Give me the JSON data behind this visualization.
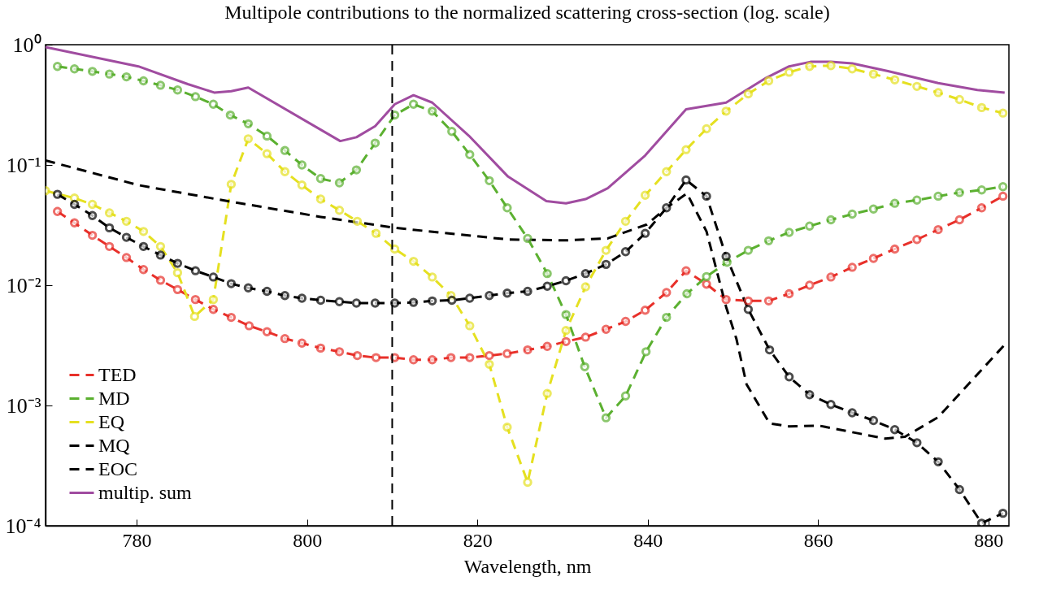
{
  "chart_data": {
    "type": "line",
    "title": "Multipole contributions to the normalized scattering cross-section (log. scale)",
    "xlabel": "Wavelength, nm",
    "log": "y",
    "xlim": [
      769.3,
      882.4
    ],
    "xticks": [
      780,
      800,
      820,
      840,
      860,
      880
    ],
    "ylim": [
      0.0001,
      1
    ],
    "yticks": [
      {
        "value": 0.0001,
        "label": "10⁻⁴"
      },
      {
        "value": 0.001,
        "label": "10⁻³"
      },
      {
        "value": 0.01,
        "label": "10⁻²"
      },
      {
        "value": 0.1,
        "label": "10⁻¹"
      },
      {
        "value": 1,
        "label": "10⁰"
      }
    ],
    "legend": "bottom left",
    "grid": false,
    "ref_lines": [
      {
        "axis": "x",
        "value": 810,
        "color": "#000000",
        "line_style": "dashed"
      }
    ],
    "series": [
      {
        "name": "TED",
        "color": "#e8302a",
        "line_style": "dashed",
        "marker": "circle",
        "x": [
          770.7,
          772.7,
          774.8,
          776.8,
          778.8,
          780.8,
          782.8,
          784.8,
          786.9,
          789,
          791.1,
          793.2,
          795.3,
          797.4,
          799.4,
          801.6,
          803.8,
          805.9,
          808.1,
          810.3,
          812.5,
          814.7,
          816.9,
          819.1,
          821.4,
          823.5,
          825.9,
          828.2,
          830.4,
          832.7,
          835.1,
          837.4,
          839.7,
          842.2,
          844.5,
          846.9,
          849.2,
          851.8,
          854.2,
          856.6,
          859,
          861.5,
          864,
          866.5,
          869,
          871.6,
          874.1,
          876.6,
          879.2,
          881.7
        ],
        "values": [
          0.041,
          0.033,
          0.026,
          0.021,
          0.017,
          0.0135,
          0.011,
          0.0092,
          0.0076,
          0.0063,
          0.0054,
          0.0046,
          0.0041,
          0.0036,
          0.0033,
          0.003,
          0.0028,
          0.0026,
          0.0025,
          0.0025,
          0.0024,
          0.0024,
          0.0025,
          0.0025,
          0.0026,
          0.0027,
          0.0029,
          0.0031,
          0.0034,
          0.0037,
          0.0043,
          0.005,
          0.0062,
          0.0087,
          0.0132,
          0.0102,
          0.0076,
          0.0074,
          0.0074,
          0.0085,
          0.01,
          0.0117,
          0.0141,
          0.0167,
          0.02,
          0.024,
          0.029,
          0.035,
          0.044,
          0.055
        ]
      },
      {
        "name": "MD",
        "color": "#5bb030",
        "line_style": "dashed",
        "marker": "circle",
        "x": [
          770.7,
          772.7,
          774.8,
          776.8,
          778.8,
          780.8,
          782.8,
          784.8,
          786.9,
          789,
          791,
          793.1,
          795.3,
          797.4,
          799.4,
          801.6,
          803.8,
          805.8,
          808,
          810.3,
          812.5,
          814.7,
          817,
          819.1,
          821.4,
          823.5,
          825.9,
          828.2,
          830.4,
          832.6,
          835.1,
          837.4,
          839.8,
          842.2,
          844.6,
          846.9,
          849.3,
          851.8,
          854.2,
          856.6,
          859,
          861.5,
          864,
          866.5,
          869,
          871.6,
          874.1,
          876.6,
          879.2,
          881.7
        ],
        "values": [
          0.66,
          0.63,
          0.6,
          0.57,
          0.54,
          0.5,
          0.46,
          0.42,
          0.37,
          0.32,
          0.26,
          0.22,
          0.174,
          0.132,
          0.1,
          0.077,
          0.071,
          0.091,
          0.152,
          0.26,
          0.32,
          0.28,
          0.19,
          0.122,
          0.074,
          0.044,
          0.0245,
          0.0125,
          0.0057,
          0.0021,
          0.00079,
          0.0012,
          0.0028,
          0.0054,
          0.0085,
          0.0118,
          0.0155,
          0.0195,
          0.0234,
          0.0275,
          0.031,
          0.035,
          0.039,
          0.043,
          0.048,
          0.051,
          0.055,
          0.059,
          0.062,
          0.066
        ]
      },
      {
        "name": "EQ",
        "color": "#e5e020",
        "line_style": "dashed",
        "marker": "circle",
        "x": [
          769.3,
          772.7,
          774.8,
          776.8,
          778.8,
          780.8,
          782.8,
          784.8,
          786.8,
          789,
          791.1,
          793.1,
          795.3,
          797.4,
          799.4,
          801.6,
          803.8,
          805.9,
          808.1,
          810.3,
          812.5,
          814.7,
          816.9,
          819.1,
          821.4,
          823.5,
          825.9,
          828.2,
          830.4,
          832.7,
          835.1,
          837.4,
          839.7,
          842.2,
          844.5,
          846.9,
          849.2,
          851.8,
          854.2,
          856.6,
          859,
          861.5,
          864,
          866.5,
          869,
          871.6,
          874.1,
          876.6,
          879.2,
          881.7
        ],
        "values": [
          0.061,
          0.053,
          0.047,
          0.04,
          0.034,
          0.028,
          0.021,
          0.0127,
          0.0055,
          0.0076,
          0.069,
          0.165,
          0.124,
          0.088,
          0.068,
          0.052,
          0.042,
          0.034,
          0.027,
          0.02,
          0.0158,
          0.0117,
          0.0082,
          0.0046,
          0.0022,
          0.00066,
          0.00023,
          0.00126,
          0.0042,
          0.0097,
          0.0195,
          0.034,
          0.056,
          0.088,
          0.134,
          0.2,
          0.28,
          0.39,
          0.5,
          0.59,
          0.66,
          0.67,
          0.63,
          0.57,
          0.51,
          0.45,
          0.4,
          0.35,
          0.3,
          0.27
        ]
      },
      {
        "name": "MQ",
        "color": "#000000",
        "line_style": "dashed",
        "marker": "circle",
        "x": [
          770.7,
          772.7,
          774.8,
          776.8,
          778.8,
          780.8,
          782.8,
          784.8,
          786.9,
          789,
          791.1,
          793.1,
          795.3,
          797.4,
          799.4,
          801.6,
          803.8,
          805.8,
          808,
          810.3,
          812.5,
          814.7,
          817,
          819.1,
          821.4,
          823.5,
          825.9,
          828.2,
          830.4,
          832.7,
          835.1,
          837.4,
          839.7,
          842.2,
          844.5,
          846.9,
          849.2,
          851.8,
          854.3,
          856.6,
          859,
          861.5,
          864,
          866.5,
          869,
          871.6,
          874.1,
          876.6,
          879.2,
          881.7
        ],
        "values": [
          0.057,
          0.047,
          0.038,
          0.03,
          0.025,
          0.021,
          0.0178,
          0.0152,
          0.0132,
          0.0117,
          0.0103,
          0.0095,
          0.0089,
          0.0082,
          0.0078,
          0.0075,
          0.0073,
          0.0071,
          0.0071,
          0.0071,
          0.0072,
          0.0074,
          0.0075,
          0.0078,
          0.0082,
          0.0086,
          0.0089,
          0.0098,
          0.0109,
          0.0125,
          0.0149,
          0.019,
          0.027,
          0.044,
          0.075,
          0.055,
          0.0174,
          0.0063,
          0.0029,
          0.00173,
          0.00123,
          0.00102,
          0.00087,
          0.00075,
          0.00063,
          0.00049,
          0.00034,
          0.0002,
          0.000105,
          0.000127
        ]
      },
      {
        "name": "EOC",
        "color": "#000000",
        "line_style": "dashed",
        "marker": "none",
        "x": [
          769.3,
          780.2,
          790.7,
          801.6,
          810.3,
          823.6,
          830.4,
          835.3,
          839.9,
          842.2,
          844.6,
          846.9,
          849.2,
          850.4,
          851.6,
          854.3,
          856.6,
          860.1,
          864,
          867.9,
          870.2,
          874.1,
          878,
          881.9
        ],
        "values": [
          0.109,
          0.068,
          0.05,
          0.037,
          0.03,
          0.024,
          0.0236,
          0.0245,
          0.032,
          0.044,
          0.058,
          0.028,
          0.0066,
          0.0036,
          0.0015,
          0.00071,
          0.00067,
          0.00068,
          0.0006,
          0.00053,
          0.00055,
          0.0008,
          0.0016,
          0.0032
        ]
      },
      {
        "name": "multip. sum",
        "color": "#a04ca0",
        "line_style": "solid",
        "marker": "none",
        "x": [
          769.3,
          780.2,
          786,
          789.1,
          791.1,
          793.1,
          803.9,
          805.8,
          808,
          810.3,
          812.5,
          814.7,
          819,
          823.6,
          828.1,
          830.4,
          832.7,
          835.3,
          839.7,
          844.5,
          849.2,
          853.9,
          856.6,
          859.1,
          861.5,
          864,
          868.3,
          874.1,
          878.7,
          881.9
        ],
        "values": [
          0.955,
          0.66,
          0.47,
          0.4,
          0.41,
          0.44,
          0.158,
          0.17,
          0.21,
          0.32,
          0.38,
          0.33,
          0.175,
          0.08,
          0.05,
          0.048,
          0.052,
          0.064,
          0.12,
          0.29,
          0.33,
          0.53,
          0.66,
          0.72,
          0.72,
          0.7,
          0.6,
          0.48,
          0.42,
          0.4
        ]
      }
    ]
  }
}
